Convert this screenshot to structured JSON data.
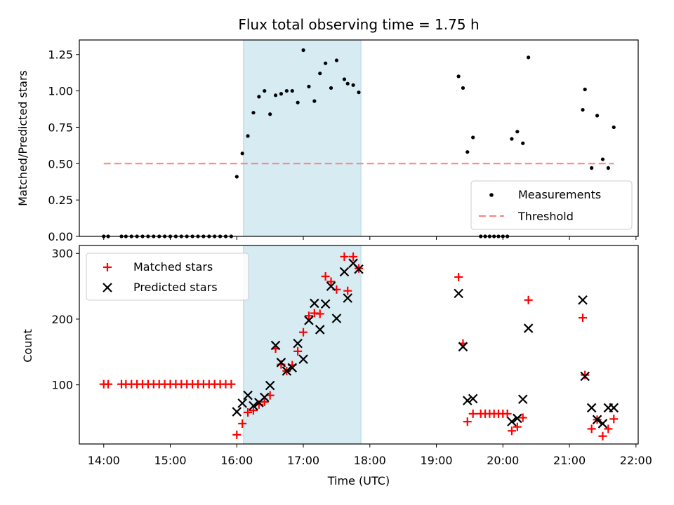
{
  "chart_data": [
    {
      "type": "scatter",
      "title": "Flux total observing time = 1.75 h",
      "xlabel": "",
      "ylabel": "Matched/Predicted stars",
      "xlim": [
        "13:38",
        "22:02"
      ],
      "ylim": [
        0,
        1.35
      ],
      "yticks": [
        "0.00",
        "0.25",
        "0.50",
        "0.75",
        "1.00",
        "1.25"
      ],
      "grid": false,
      "legend_position": "lower-right",
      "shaded_region": {
        "start": "16:06",
        "end": "17:52",
        "color": "#add8e6"
      },
      "threshold": {
        "name": "Threshold",
        "value": 0.5,
        "start": "14:00",
        "end": "21:40",
        "color": "#ff7f7f"
      },
      "series": [
        {
          "name": "Measurements",
          "color": "#000000",
          "marker": "dot",
          "points": [
            [
              "14:00",
              0
            ],
            [
              "14:04",
              0
            ],
            [
              "14:16",
              0
            ],
            [
              "14:20",
              0
            ],
            [
              "14:25",
              0
            ],
            [
              "14:30",
              0
            ],
            [
              "14:35",
              0
            ],
            [
              "14:40",
              0
            ],
            [
              "14:45",
              0
            ],
            [
              "14:50",
              0
            ],
            [
              "14:55",
              0
            ],
            [
              "15:00",
              0
            ],
            [
              "15:05",
              0
            ],
            [
              "15:10",
              0
            ],
            [
              "15:15",
              0
            ],
            [
              "15:20",
              0
            ],
            [
              "15:25",
              0
            ],
            [
              "15:30",
              0
            ],
            [
              "15:35",
              0
            ],
            [
              "15:40",
              0
            ],
            [
              "15:45",
              0
            ],
            [
              "15:50",
              0
            ],
            [
              "15:55",
              0
            ],
            [
              "16:00",
              0.41
            ],
            [
              "16:05",
              0.57
            ],
            [
              "16:10",
              0.69
            ],
            [
              "16:15",
              0.85
            ],
            [
              "16:20",
              0.96
            ],
            [
              "16:25",
              1.0
            ],
            [
              "16:30",
              0.84
            ],
            [
              "16:35",
              0.97
            ],
            [
              "16:40",
              0.98
            ],
            [
              "16:45",
              1.0
            ],
            [
              "16:50",
              1.0
            ],
            [
              "16:55",
              0.92
            ],
            [
              "17:00",
              1.28
            ],
            [
              "17:05",
              1.03
            ],
            [
              "17:10",
              0.93
            ],
            [
              "17:15",
              1.12
            ],
            [
              "17:20",
              1.19
            ],
            [
              "17:25",
              1.02
            ],
            [
              "17:30",
              1.21
            ],
            [
              "17:37",
              1.08
            ],
            [
              "17:40",
              1.05
            ],
            [
              "17:45",
              1.04
            ],
            [
              "17:50",
              0.99
            ],
            [
              "19:20",
              1.1
            ],
            [
              "19:24",
              1.02
            ],
            [
              "19:28",
              0.58
            ],
            [
              "19:33",
              0.68
            ],
            [
              "19:40",
              0
            ],
            [
              "19:44",
              0
            ],
            [
              "19:48",
              0
            ],
            [
              "19:52",
              0
            ],
            [
              "19:56",
              0
            ],
            [
              "20:00",
              0
            ],
            [
              "20:04",
              0
            ],
            [
              "20:08",
              0.67
            ],
            [
              "20:13",
              0.72
            ],
            [
              "20:18",
              0.64
            ],
            [
              "20:23",
              1.23
            ],
            [
              "21:12",
              0.87
            ],
            [
              "21:14",
              1.01
            ],
            [
              "21:20",
              0.47
            ],
            [
              "21:25",
              0.83
            ],
            [
              "21:30",
              0.53
            ],
            [
              "21:35",
              0.47
            ],
            [
              "21:40",
              0.75
            ]
          ]
        }
      ]
    },
    {
      "type": "scatter",
      "title": "",
      "xlabel": "Time (UTC)",
      "ylabel": "Count",
      "xlim": [
        "13:38",
        "22:02"
      ],
      "ylim": [
        10,
        312
      ],
      "yticks": [
        "100",
        "200",
        "300"
      ],
      "xticks": [
        "14:00",
        "15:00",
        "16:00",
        "17:00",
        "18:00",
        "19:00",
        "20:00",
        "21:00",
        "22:00"
      ],
      "grid": false,
      "legend_position": "upper-left",
      "shaded_region": {
        "start": "16:06",
        "end": "17:52",
        "color": "#add8e6"
      },
      "series": [
        {
          "name": "Matched stars",
          "color": "#ff0000",
          "marker": "plus",
          "points": [
            [
              "14:00",
              101
            ],
            [
              "14:04",
              101
            ],
            [
              "14:16",
              101
            ],
            [
              "14:20",
              101
            ],
            [
              "14:25",
              101
            ],
            [
              "14:30",
              101
            ],
            [
              "14:35",
              101
            ],
            [
              "14:40",
              101
            ],
            [
              "14:45",
              101
            ],
            [
              "14:50",
              101
            ],
            [
              "14:55",
              101
            ],
            [
              "15:00",
              101
            ],
            [
              "15:05",
              101
            ],
            [
              "15:10",
              101
            ],
            [
              "15:15",
              101
            ],
            [
              "15:20",
              101
            ],
            [
              "15:25",
              101
            ],
            [
              "15:30",
              101
            ],
            [
              "15:35",
              101
            ],
            [
              "15:40",
              101
            ],
            [
              "15:45",
              101
            ],
            [
              "15:50",
              101
            ],
            [
              "15:55",
              101
            ],
            [
              "16:00",
              24
            ],
            [
              "16:05",
              41
            ],
            [
              "16:10",
              58
            ],
            [
              "16:15",
              61
            ],
            [
              "16:20",
              70
            ],
            [
              "16:25",
              74
            ],
            [
              "16:30",
              84
            ],
            [
              "16:35",
              155
            ],
            [
              "16:40",
              131
            ],
            [
              "16:45",
              121
            ],
            [
              "16:50",
              130
            ],
            [
              "16:55",
              151
            ],
            [
              "17:00",
              180
            ],
            [
              "17:05",
              205
            ],
            [
              "17:10",
              209
            ],
            [
              "17:15",
              208
            ],
            [
              "17:20",
              265
            ],
            [
              "17:25",
              257
            ],
            [
              "17:30",
              245
            ],
            [
              "17:37",
              295
            ],
            [
              "17:40",
              243
            ],
            [
              "17:45",
              295
            ],
            [
              "17:50",
              277
            ],
            [
              "19:20",
              264
            ],
            [
              "19:24",
              163
            ],
            [
              "19:28",
              44
            ],
            [
              "19:33",
              56
            ],
            [
              "19:40",
              56
            ],
            [
              "19:44",
              56
            ],
            [
              "19:48",
              56
            ],
            [
              "19:52",
              56
            ],
            [
              "19:56",
              56
            ],
            [
              "20:00",
              56
            ],
            [
              "20:04",
              56
            ],
            [
              "20:08",
              30
            ],
            [
              "20:13",
              36
            ],
            [
              "20:18",
              50
            ],
            [
              "20:23",
              229
            ],
            [
              "21:12",
              202
            ],
            [
              "21:14",
              115
            ],
            [
              "21:20",
              33
            ],
            [
              "21:25",
              47
            ],
            [
              "21:30",
              22
            ],
            [
              "21:35",
              33
            ],
            [
              "21:40",
              48
            ]
          ]
        },
        {
          "name": "Predicted stars",
          "color": "#000000",
          "marker": "x",
          "points": [
            [
              "16:00",
              59
            ],
            [
              "16:05",
              72
            ],
            [
              "16:10",
              84
            ],
            [
              "16:15",
              68
            ],
            [
              "16:20",
              73
            ],
            [
              "16:25",
              81
            ],
            [
              "16:30",
              99
            ],
            [
              "16:35",
              160
            ],
            [
              "16:40",
              134
            ],
            [
              "16:45",
              121
            ],
            [
              "16:50",
              126
            ],
            [
              "16:55",
              163
            ],
            [
              "17:00",
              139
            ],
            [
              "17:05",
              198
            ],
            [
              "17:10",
              224
            ],
            [
              "17:15",
              184
            ],
            [
              "17:20",
              223
            ],
            [
              "17:25",
              250
            ],
            [
              "17:30",
              201
            ],
            [
              "17:37",
              272
            ],
            [
              "17:40",
              232
            ],
            [
              "17:45",
              285
            ],
            [
              "17:50",
              276
            ],
            [
              "19:20",
              239
            ],
            [
              "19:24",
              158
            ],
            [
              "19:28",
              76
            ],
            [
              "19:33",
              79
            ],
            [
              "20:08",
              44
            ],
            [
              "20:13",
              49
            ],
            [
              "20:18",
              78
            ],
            [
              "20:23",
              186
            ],
            [
              "21:12",
              229
            ],
            [
              "21:14",
              113
            ],
            [
              "21:20",
              65
            ],
            [
              "21:25",
              47
            ],
            [
              "21:30",
              41
            ],
            [
              "21:35",
              65
            ],
            [
              "21:40",
              65
            ]
          ]
        }
      ]
    }
  ]
}
